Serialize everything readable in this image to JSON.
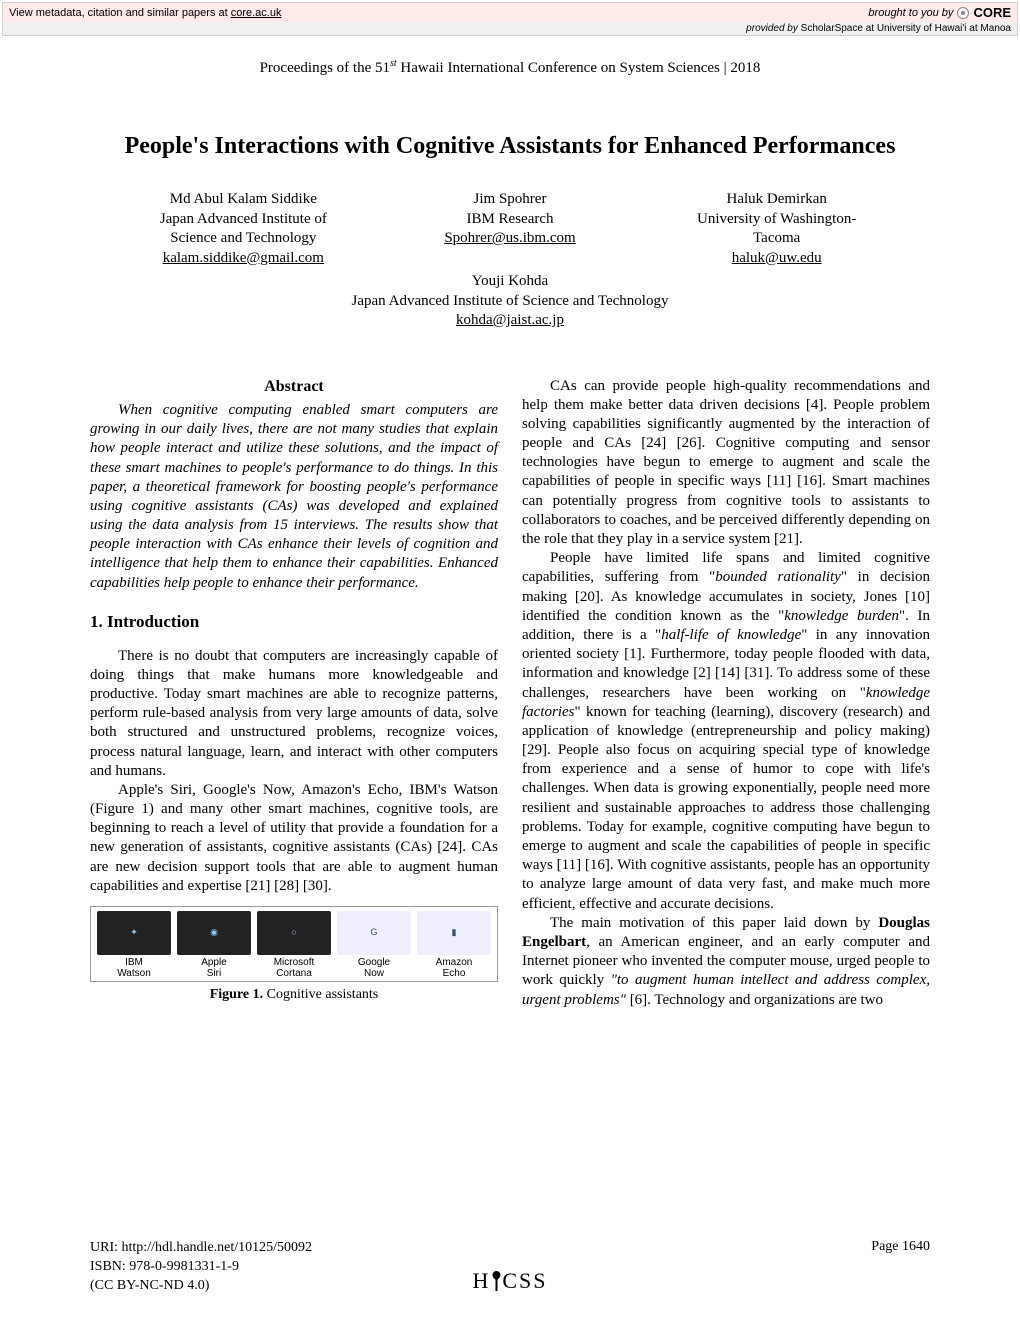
{
  "core_bar": {
    "left_prefix": "View metadata, citation and similar papers at",
    "left_link": "core.ac.uk",
    "right_prefix": "brought to you by",
    "core_word": "CORE",
    "provided_prefix": "provided by",
    "provided_src": "ScholarSpace at University of Hawai'i at Manoa"
  },
  "proceedings": {
    "prefix": "Proceedings of the 51",
    "sup": "st",
    "suffix": " Hawaii International Conference on System Sciences | 2018"
  },
  "title": "People's Interactions with Cognitive Assistants for Enhanced Performances",
  "authors": {
    "a1": {
      "name": "Md Abul Kalam Siddike",
      "aff1": "Japan Advanced Institute of",
      "aff2": "Science and Technology",
      "email": "kalam.siddike@gmail.com"
    },
    "a2": {
      "name": "Jim Spohrer",
      "aff1": "IBM Research",
      "email": "Spohrer@us.ibm.com"
    },
    "a3": {
      "name": "Haluk Demirkan",
      "aff1": "University of Washington-",
      "aff2": "Tacoma",
      "email": "haluk@uw.edu"
    },
    "a4": {
      "name": "Youji Kohda",
      "aff1": "Japan Advanced Institute of Science and Technology",
      "email": "kohda@jaist.ac.jp"
    }
  },
  "abstract_head": "Abstract",
  "abstract_body": "When cognitive computing enabled smart computers are growing in our daily lives, there are not many studies that explain how people interact and utilize these solutions, and the impact of these smart machines to people's performance to do things. In this paper, a theoretical framework for boosting people's performance using cognitive assistants (CAs) was developed and explained using the data analysis from 15 interviews. The results show that people interaction with CAs enhance their levels of cognition and intelligence that help them to enhance their capabilities. Enhanced capabilities help people to enhance their performance.",
  "intro_head": "1. Introduction",
  "intro_p1": "There is no doubt that computers are increasingly capable of doing things that make humans more knowledgeable and productive. Today smart machines are able to recognize patterns, perform rule-based analysis from very large amounts of data, solve both structured and unstructured problems, recognize voices, process natural language, learn, and interact with other computers and humans.",
  "intro_p2": "Apple's Siri, Google's Now, Amazon's Echo, IBM's Watson (Figure 1) and many other smart machines, cognitive tools, are beginning to reach a level of utility that provide a foundation for a new generation of assistants, cognitive assistants (CAs) [24]. CAs are new decision support tools that are able to augment human capabilities and expertise [21] [28] [30].",
  "figure": {
    "items": [
      {
        "label1": "IBM",
        "label2": "Watson"
      },
      {
        "label1": "Apple",
        "label2": "Siri"
      },
      {
        "label1": "Microsoft",
        "label2": "Cortana"
      },
      {
        "label1": "Google",
        "label2": "Now"
      },
      {
        "label1": "Amazon",
        "label2": "Echo"
      }
    ],
    "caption_bold": "Figure 1.",
    "caption_rest": " Cognitive assistants"
  },
  "col2_p1": "CAs can provide people high-quality recommendations and help them make better data driven decisions [4]. People problem solving capabilities significantly augmented by the interaction of people and CAs [24] [26]. Cognitive computing and sensor technologies have begun to emerge to augment and scale the capabilities of people in specific ways [11] [16]. Smart machines can potentially progress from cognitive tools to assistants to collaborators to coaches, and be perceived differently depending on the role that they play in a service system [21].",
  "col2_p2a": "People have limited life spans and limited cognitive capabilities, suffering from \"",
  "col2_p2_i1": "bounded rationality",
  "col2_p2b": "\" in decision making [20]. As knowledge accumulates in society, Jones [10] identified the condition known as the \"",
  "col2_p2_i2": "knowledge burden",
  "col2_p2c": "\". In addition, there is a \"",
  "col2_p2_i3": "half-life of knowledge",
  "col2_p2d": "\" in any innovation oriented society [1]. Furthermore, today people flooded with data, information and knowledge [2] [14] [31]. To address some of these challenges, researchers have been working on \"",
  "col2_p2_i4": "knowledge factories",
  "col2_p2e": "\" known for teaching (learning), discovery (research) and application of knowledge (entrepreneurship and policy making) [29]. People also focus on acquiring special type of knowledge from experience and a sense of humor to cope with life's challenges. When data is growing exponentially, people need more resilient and sustainable approaches to address those challenging problems. Today for example, cognitive computing have begun to emerge to augment and scale the capabilities of people in specific ways [11] [16]. With cognitive assistants, people has an opportunity to analyze large amount of data very fast, and make much more efficient, effective and accurate decisions.",
  "col2_p3a": "The main motivation of this paper laid down by ",
  "col2_p3_b1": "Douglas Engelbart",
  "col2_p3b": ", an American engineer, and an early computer and Internet pioneer who invented the computer mouse, urged people to work quickly ",
  "col2_p3_i1": "\"to augment human intellect and address complex, urgent problems\"",
  "col2_p3c": " [6]. Technology and organizations are two",
  "footer": {
    "uri_label": "URI:",
    "uri": "http://hdl.handle.net/10125/50092",
    "isbn_label": "ISBN:",
    "isbn": "978-0-9981331-1-9",
    "license": "(CC BY-NC-ND 4.0)",
    "page": "Page 1640",
    "logo_left": "H",
    "logo_right": "CSS"
  }
}
